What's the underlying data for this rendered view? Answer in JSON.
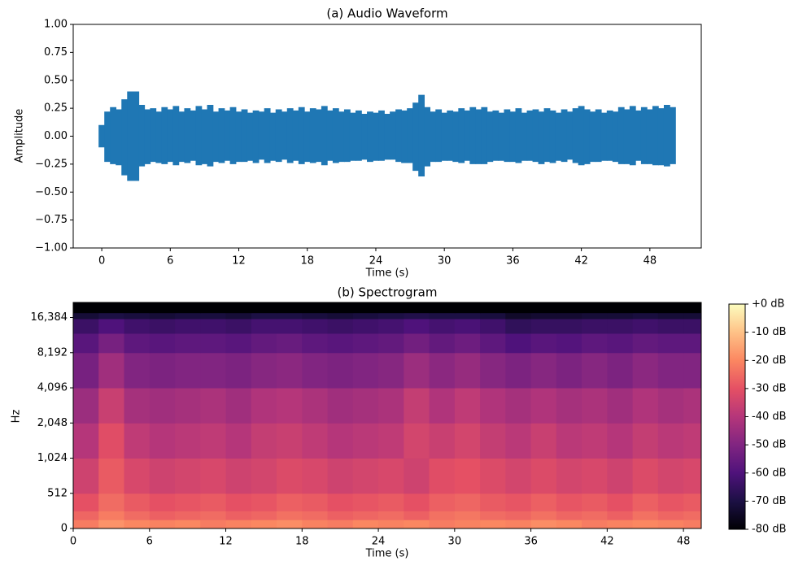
{
  "chart_data": [
    {
      "type": "area",
      "title": "(a) Audio Waveform",
      "xlabel": "Time (s)",
      "ylabel": "Amplitude",
      "color": "#1f77b4",
      "xlim": [
        -2.5,
        52.5
      ],
      "ylim": [
        -1,
        1
      ],
      "xticks": [
        0,
        6,
        12,
        18,
        24,
        30,
        36,
        42,
        48
      ],
      "yticks": [
        {
          "value": -1,
          "label": "−1.00"
        },
        {
          "value": -0.75,
          "label": "−0.75"
        },
        {
          "value": -0.5,
          "label": "−0.50"
        },
        {
          "value": -0.25,
          "label": "−0.25"
        },
        {
          "value": 0,
          "label": "0.00"
        },
        {
          "value": 0.25,
          "label": "0.25"
        },
        {
          "value": 0.5,
          "label": "0.50"
        },
        {
          "value": 0.75,
          "label": "0.75"
        },
        {
          "value": 1,
          "label": "1.00"
        }
      ],
      "x": [
        0,
        0.5,
        1,
        1.5,
        2,
        2.5,
        3,
        3.5,
        4,
        4.5,
        5,
        5.5,
        6,
        6.5,
        7,
        7.5,
        8,
        8.5,
        9,
        9.5,
        10,
        10.5,
        11,
        11.5,
        12,
        12.5,
        13,
        13.5,
        14,
        14.5,
        15,
        15.5,
        16,
        16.5,
        17,
        17.5,
        18,
        18.5,
        19,
        19.5,
        20,
        20.5,
        21,
        21.5,
        22,
        22.5,
        23,
        23.5,
        24,
        24.5,
        25,
        25.5,
        26,
        26.5,
        27,
        27.5,
        28,
        28.5,
        29,
        29.5,
        30,
        30.5,
        31,
        31.5,
        32,
        32.5,
        33,
        33.5,
        34,
        34.5,
        35,
        35.5,
        36,
        36.5,
        37,
        37.5,
        38,
        38.5,
        39,
        39.5,
        40,
        40.5,
        41,
        41.5,
        42,
        42.5,
        43,
        43.5,
        44,
        44.5,
        45,
        45.5,
        46,
        46.5,
        47,
        47.5,
        48,
        48.5,
        49,
        49.5,
        50
      ],
      "upper": [
        0.1,
        0.22,
        0.26,
        0.24,
        0.33,
        0.4,
        0.4,
        0.28,
        0.24,
        0.25,
        0.22,
        0.26,
        0.24,
        0.27,
        0.22,
        0.25,
        0.23,
        0.27,
        0.24,
        0.28,
        0.22,
        0.25,
        0.23,
        0.26,
        0.22,
        0.24,
        0.21,
        0.23,
        0.22,
        0.25,
        0.21,
        0.24,
        0.22,
        0.25,
        0.23,
        0.26,
        0.22,
        0.25,
        0.24,
        0.27,
        0.23,
        0.25,
        0.22,
        0.24,
        0.21,
        0.23,
        0.2,
        0.22,
        0.21,
        0.23,
        0.2,
        0.22,
        0.24,
        0.23,
        0.25,
        0.3,
        0.37,
        0.26,
        0.22,
        0.24,
        0.21,
        0.23,
        0.22,
        0.25,
        0.23,
        0.26,
        0.24,
        0.26,
        0.22,
        0.23,
        0.21,
        0.24,
        0.22,
        0.25,
        0.21,
        0.23,
        0.24,
        0.22,
        0.25,
        0.23,
        0.21,
        0.24,
        0.22,
        0.25,
        0.27,
        0.24,
        0.22,
        0.24,
        0.21,
        0.23,
        0.22,
        0.26,
        0.24,
        0.27,
        0.23,
        0.26,
        0.24,
        0.27,
        0.25,
        0.28,
        0.26
      ],
      "lower": [
        -0.1,
        -0.23,
        -0.25,
        -0.26,
        -0.35,
        -0.4,
        -0.4,
        -0.27,
        -0.25,
        -0.23,
        -0.24,
        -0.25,
        -0.23,
        -0.26,
        -0.23,
        -0.24,
        -0.22,
        -0.26,
        -0.25,
        -0.27,
        -0.23,
        -0.24,
        -0.22,
        -0.25,
        -0.23,
        -0.23,
        -0.22,
        -0.24,
        -0.21,
        -0.24,
        -0.22,
        -0.23,
        -0.21,
        -0.24,
        -0.22,
        -0.25,
        -0.23,
        -0.24,
        -0.23,
        -0.26,
        -0.22,
        -0.24,
        -0.23,
        -0.23,
        -0.22,
        -0.22,
        -0.21,
        -0.23,
        -0.22,
        -0.22,
        -0.21,
        -0.21,
        -0.23,
        -0.24,
        -0.24,
        -0.31,
        -0.36,
        -0.27,
        -0.23,
        -0.23,
        -0.22,
        -0.22,
        -0.23,
        -0.24,
        -0.22,
        -0.25,
        -0.25,
        -0.25,
        -0.23,
        -0.22,
        -0.22,
        -0.23,
        -0.23,
        -0.24,
        -0.22,
        -0.22,
        -0.23,
        -0.25,
        -0.23,
        -0.24,
        -0.22,
        -0.23,
        -0.21,
        -0.24,
        -0.26,
        -0.25,
        -0.23,
        -0.23,
        -0.22,
        -0.22,
        -0.23,
        -0.25,
        -0.25,
        -0.26,
        -0.22,
        -0.25,
        -0.25,
        -0.26,
        -0.26,
        -0.27,
        -0.25
      ]
    },
    {
      "type": "heatmap",
      "title": "(b) Spectrogram",
      "xlabel": "Time (s)",
      "ylabel": "Hz",
      "xlim": [
        0,
        49.4
      ],
      "ylim": [
        0,
        22050
      ],
      "yscale": "symlog",
      "linthresh": 512,
      "xticks": [
        0,
        6,
        12,
        18,
        24,
        30,
        36,
        42,
        48
      ],
      "yticks": [
        0,
        512,
        {
          "value": 1024,
          "label": "1,024"
        },
        {
          "value": 2048,
          "label": "2,048"
        },
        {
          "value": 4096,
          "label": "4,096"
        },
        {
          "value": 8192,
          "label": "8,192"
        },
        {
          "value": 16384,
          "label": "16,384"
        }
      ],
      "x_edges": [
        0,
        2,
        4,
        6,
        8,
        10,
        12,
        14,
        16,
        18,
        20,
        22,
        24,
        26,
        28,
        30,
        32,
        34,
        36,
        38,
        40,
        42,
        44,
        46,
        48,
        49.4
      ],
      "y_edges": [
        0,
        128,
        256,
        512,
        1024,
        2048,
        4096,
        8192,
        12000,
        16000,
        18000,
        22050
      ],
      "values": [
        [
          -22,
          -18,
          -20,
          -21,
          -20,
          -22,
          -21,
          -20,
          -19,
          -21,
          -22,
          -20,
          -21,
          -20,
          -22,
          -21,
          -20,
          -21,
          -19,
          -20,
          -22,
          -21,
          -20,
          -21,
          -22
        ],
        [
          -26,
          -22,
          -25,
          -27,
          -26,
          -25,
          -27,
          -26,
          -24,
          -25,
          -27,
          -26,
          -25,
          -27,
          -24,
          -23,
          -25,
          -26,
          -24,
          -26,
          -25,
          -27,
          -24,
          -26,
          -25
        ],
        [
          -30,
          -25,
          -28,
          -30,
          -29,
          -28,
          -30,
          -29,
          -27,
          -28,
          -30,
          -29,
          -28,
          -30,
          -27,
          -26,
          -28,
          -29,
          -27,
          -29,
          -28,
          -30,
          -27,
          -29,
          -28
        ],
        [
          -35,
          -28,
          -33,
          -35,
          -34,
          -33,
          -35,
          -34,
          -32,
          -33,
          -35,
          -34,
          -33,
          -35,
          -31,
          -30,
          -32,
          -34,
          -32,
          -34,
          -33,
          -35,
          -32,
          -34,
          -33
        ],
        [
          -40,
          -31,
          -38,
          -40,
          -39,
          -38,
          -40,
          -37,
          -36,
          -38,
          -40,
          -39,
          -38,
          -34,
          -36,
          -34,
          -37,
          -39,
          -36,
          -39,
          -38,
          -40,
          -37,
          -39,
          -38
        ],
        [
          -45,
          -36,
          -43,
          -44,
          -43,
          -42,
          -44,
          -41,
          -40,
          -42,
          -44,
          -43,
          -42,
          -37,
          -41,
          -38,
          -41,
          -43,
          -41,
          -43,
          -42,
          -44,
          -41,
          -43,
          -42
        ],
        [
          -52,
          -44,
          -50,
          -51,
          -50,
          -50,
          -51,
          -49,
          -48,
          -50,
          -51,
          -50,
          -49,
          -45,
          -48,
          -46,
          -49,
          -51,
          -49,
          -51,
          -49,
          -51,
          -48,
          -50,
          -50
        ],
        [
          -58,
          -52,
          -57,
          -58,
          -57,
          -57,
          -58,
          -56,
          -55,
          -57,
          -58,
          -57,
          -56,
          -53,
          -56,
          -54,
          -57,
          -60,
          -58,
          -59,
          -57,
          -58,
          -56,
          -57,
          -57
        ],
        [
          -64,
          -60,
          -63,
          -64,
          -63,
          -63,
          -64,
          -62,
          -62,
          -63,
          -64,
          -63,
          -62,
          -60,
          -62,
          -61,
          -63,
          -66,
          -65,
          -65,
          -64,
          -64,
          -63,
          -64,
          -64
        ],
        [
          -72,
          -70,
          -71,
          -72,
          -71,
          -71,
          -72,
          -70,
          -70,
          -71,
          -72,
          -71,
          -70,
          -69,
          -70,
          -70,
          -71,
          -74,
          -73,
          -73,
          -72,
          -72,
          -71,
          -72,
          -72
        ],
        [
          -80,
          -80,
          -80,
          -80,
          -80,
          -80,
          -80,
          -80,
          -80,
          -80,
          -80,
          -80,
          -80,
          -80,
          -80,
          -80,
          -80,
          -80,
          -80,
          -80,
          -80,
          -80,
          -80,
          -80,
          -80
        ]
      ],
      "clim": [
        -80,
        0
      ],
      "colormap": [
        "#000004",
        "#1c1044",
        "#4f127b",
        "#812581",
        "#b5367a",
        "#e55064",
        "#fb8761",
        "#fec287",
        "#fcfdbf"
      ],
      "cticks": [
        {
          "value": -80,
          "label": "-80 dB"
        },
        {
          "value": -70,
          "label": "-70 dB"
        },
        {
          "value": -60,
          "label": "-60 dB"
        },
        {
          "value": -50,
          "label": "-50 dB"
        },
        {
          "value": -40,
          "label": "-40 dB"
        },
        {
          "value": -30,
          "label": "-30 dB"
        },
        {
          "value": -20,
          "label": "-20 dB"
        },
        {
          "value": -10,
          "label": "-10 dB"
        },
        {
          "value": 0,
          "label": "+0 dB"
        }
      ]
    }
  ]
}
